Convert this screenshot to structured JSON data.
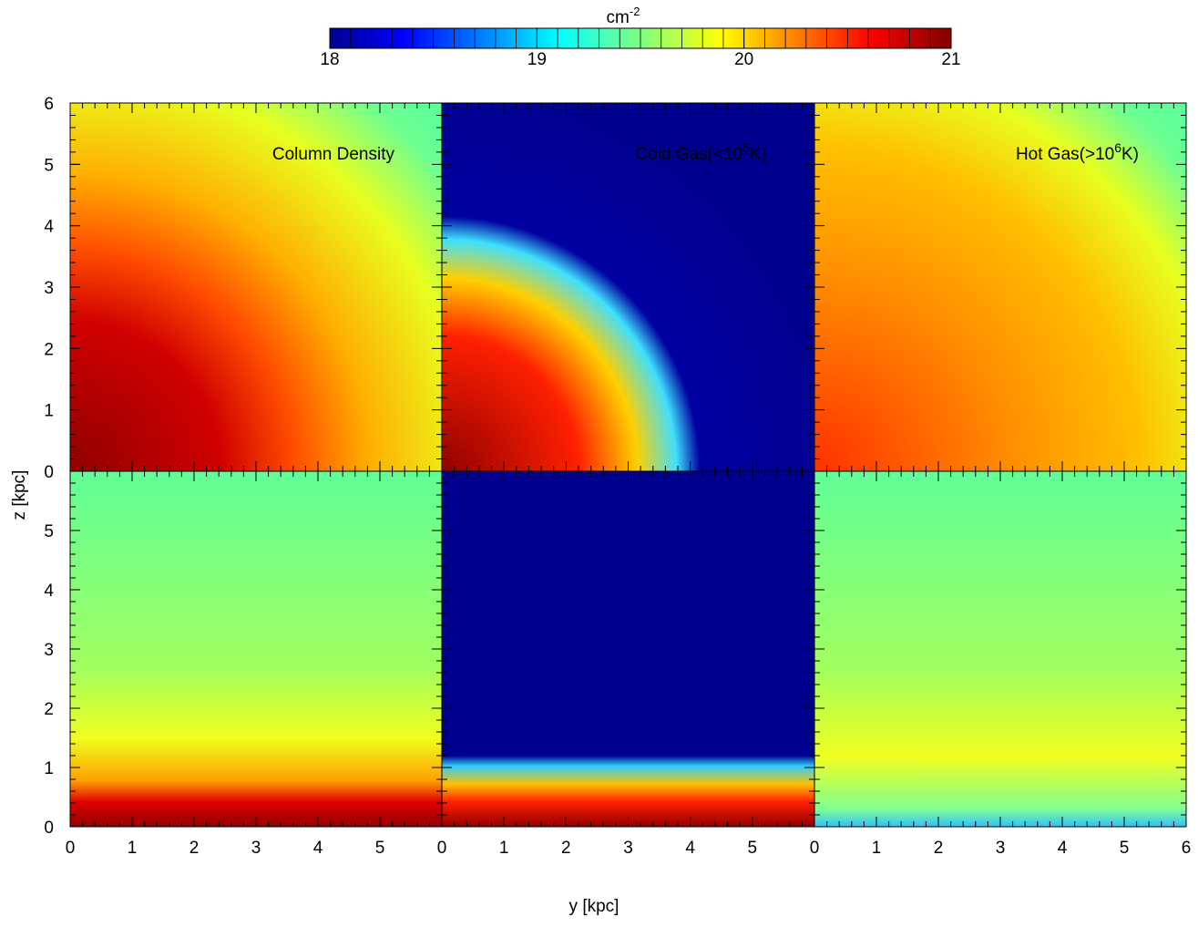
{
  "chart_data": {
    "type": "heatmap",
    "colorbar": {
      "label": "cm",
      "label_exponent": "-2",
      "clim": [
        18,
        21
      ],
      "ticks": [
        18,
        19,
        20,
        21
      ]
    },
    "xlabel": "y [kpc]",
    "ylabel": "z [kpc]",
    "xlim": [
      0,
      6
    ],
    "ylim": [
      0,
      6
    ],
    "column_xticks": [
      [
        0,
        1,
        2,
        3,
        4,
        5
      ],
      [
        0,
        1,
        2,
        3,
        4,
        5
      ],
      [
        0,
        1,
        2,
        3,
        4,
        5,
        6
      ]
    ],
    "row_yticks": [
      [
        0,
        1,
        2,
        3,
        4,
        5,
        6
      ],
      [
        0,
        1,
        2,
        3,
        4,
        5
      ]
    ],
    "panels": [
      {
        "title": [
          "Column Density"
        ]
      },
      {
        "title": [
          "Cold Gas(<10",
          "5",
          "K)"
        ]
      },
      {
        "title": [
          "Hot Gas(>10",
          "6",
          "K)"
        ]
      }
    ]
  }
}
